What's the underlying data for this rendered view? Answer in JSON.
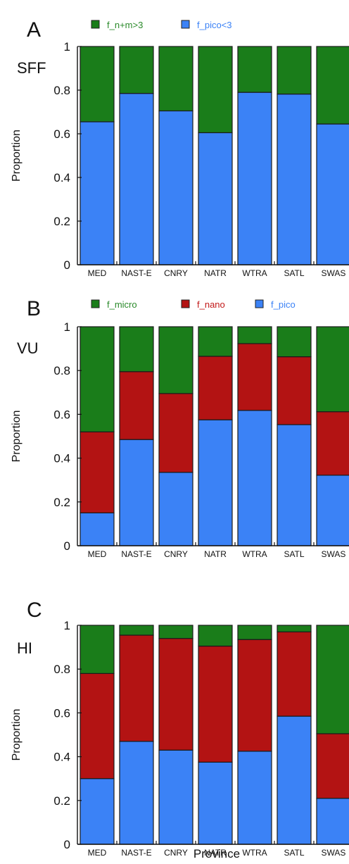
{
  "xlabel": "Province",
  "colors": {
    "green": "#1a7d1a",
    "red": "#b31313",
    "blue": "#3b82f6",
    "green_text": "#2a8a2a",
    "red_text": "#c21818",
    "blue_text": "#3b82f6"
  },
  "chart_data": [
    {
      "type": "bar",
      "stacked": true,
      "panel": "A",
      "sublabel": "SFF",
      "ylabel": "Proportion",
      "ylim": [
        0,
        1
      ],
      "yticks": [
        "0",
        "0.2",
        "0.4",
        "0.6",
        "0.8",
        "1"
      ],
      "categories": [
        "MED",
        "NAST-E",
        "CNRY",
        "NATR",
        "WTRA",
        "SATL",
        "SWAS"
      ],
      "series": [
        {
          "name": "f_pico<3",
          "color": "blue",
          "values": [
            0.655,
            0.785,
            0.705,
            0.605,
            0.79,
            0.782,
            0.645
          ]
        },
        {
          "name": "f_n+m>3",
          "color": "green",
          "values": [
            0.345,
            0.215,
            0.295,
            0.395,
            0.21,
            0.218,
            0.355
          ]
        }
      ],
      "legend": [
        {
          "name": "f_n+m>3",
          "color": "green"
        },
        {
          "name": "f_pico<3",
          "color": "blue"
        }
      ]
    },
    {
      "type": "bar",
      "stacked": true,
      "panel": "B",
      "sublabel": "VU",
      "ylabel": "Proportion",
      "ylim": [
        0,
        1
      ],
      "yticks": [
        "0",
        "0.2",
        "0.4",
        "0.6",
        "0.8",
        "1"
      ],
      "categories": [
        "MED",
        "NAST-E",
        "CNRY",
        "NATR",
        "WTRA",
        "SATL",
        "SWAS"
      ],
      "series": [
        {
          "name": "f_pico",
          "color": "blue",
          "values": [
            0.15,
            0.485,
            0.335,
            0.575,
            0.618,
            0.553,
            0.322
          ]
        },
        {
          "name": "f_nano",
          "color": "red",
          "values": [
            0.37,
            0.31,
            0.36,
            0.29,
            0.305,
            0.31,
            0.29
          ]
        },
        {
          "name": "f_micro",
          "color": "green",
          "values": [
            0.48,
            0.205,
            0.305,
            0.135,
            0.077,
            0.137,
            0.388
          ]
        }
      ],
      "legend": [
        {
          "name": "f_micro",
          "color": "green"
        },
        {
          "name": "f_nano",
          "color": "red"
        },
        {
          "name": "f_pico",
          "color": "blue"
        }
      ]
    },
    {
      "type": "bar",
      "stacked": true,
      "panel": "C",
      "sublabel": "HI",
      "ylabel": "Proportion",
      "ylim": [
        0,
        1
      ],
      "yticks": [
        "0",
        "0.2",
        "0.4",
        "0.6",
        "0.8",
        "1"
      ],
      "categories": [
        "MED",
        "NAST-E",
        "CNRY",
        "NATR",
        "WTRA",
        "SATL",
        "SWAS"
      ],
      "series": [
        {
          "name": "f_pico",
          "color": "blue",
          "values": [
            0.3,
            0.47,
            0.43,
            0.375,
            0.425,
            0.585,
            0.21
          ]
        },
        {
          "name": "f_nano",
          "color": "red",
          "values": [
            0.48,
            0.485,
            0.51,
            0.53,
            0.51,
            0.385,
            0.295
          ]
        },
        {
          "name": "f_micro",
          "color": "green",
          "values": [
            0.22,
            0.045,
            0.06,
            0.095,
            0.065,
            0.03,
            0.495
          ]
        }
      ]
    }
  ]
}
